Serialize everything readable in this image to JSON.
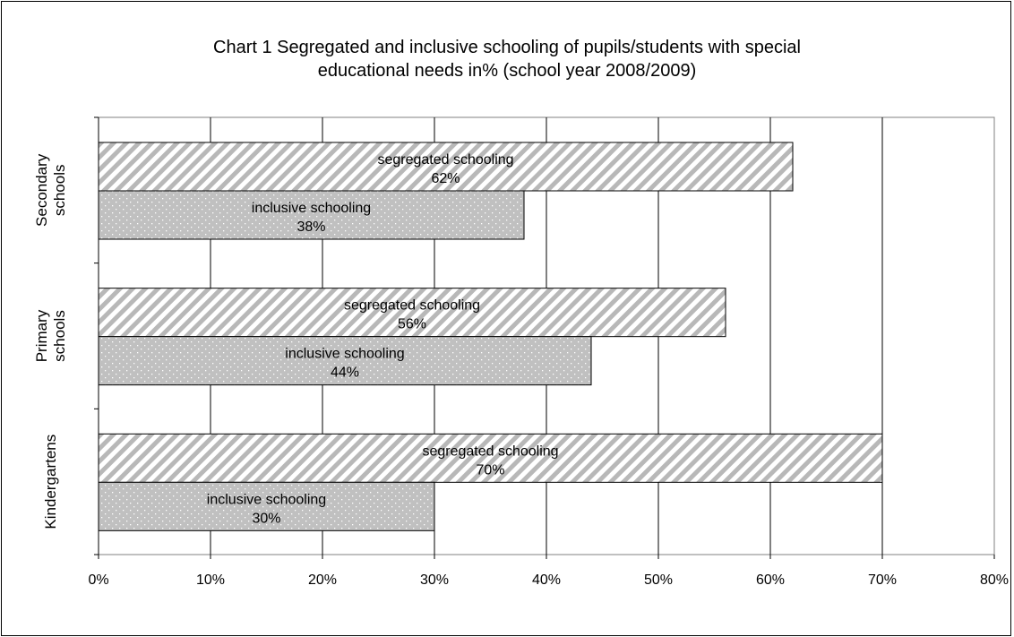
{
  "chart_data": {
    "type": "bar",
    "orientation": "horizontal",
    "title": "Chart 1 Segregated and inclusive schooling of pupils/students with special\neducational needs in% (school year 2008/2009)",
    "categories": [
      "Secondary\nschools",
      "Primary\nschools",
      "Kindergartens"
    ],
    "series": [
      {
        "name": "segregated schooling",
        "values": [
          62,
          56,
          70
        ],
        "pattern": "diagonal-stripes",
        "color": "#c8c8c8"
      },
      {
        "name": "inclusive schooling",
        "values": [
          38,
          44,
          30
        ],
        "pattern": "dots",
        "color": "#c0c0c0"
      }
    ],
    "data_labels": [
      [
        "segregated schooling\n62%",
        "segregated schooling\n56%",
        "segregated schooling\n70%"
      ],
      [
        "inclusive schooling\n38%",
        "inclusive schooling\n44%",
        "inclusive schooling\n30%"
      ]
    ],
    "x_ticks": [
      "0%",
      "10%",
      "20%",
      "30%",
      "40%",
      "50%",
      "60%",
      "70%",
      "80%"
    ],
    "xlim": [
      0,
      80
    ],
    "grid": true,
    "legend": "none"
  }
}
